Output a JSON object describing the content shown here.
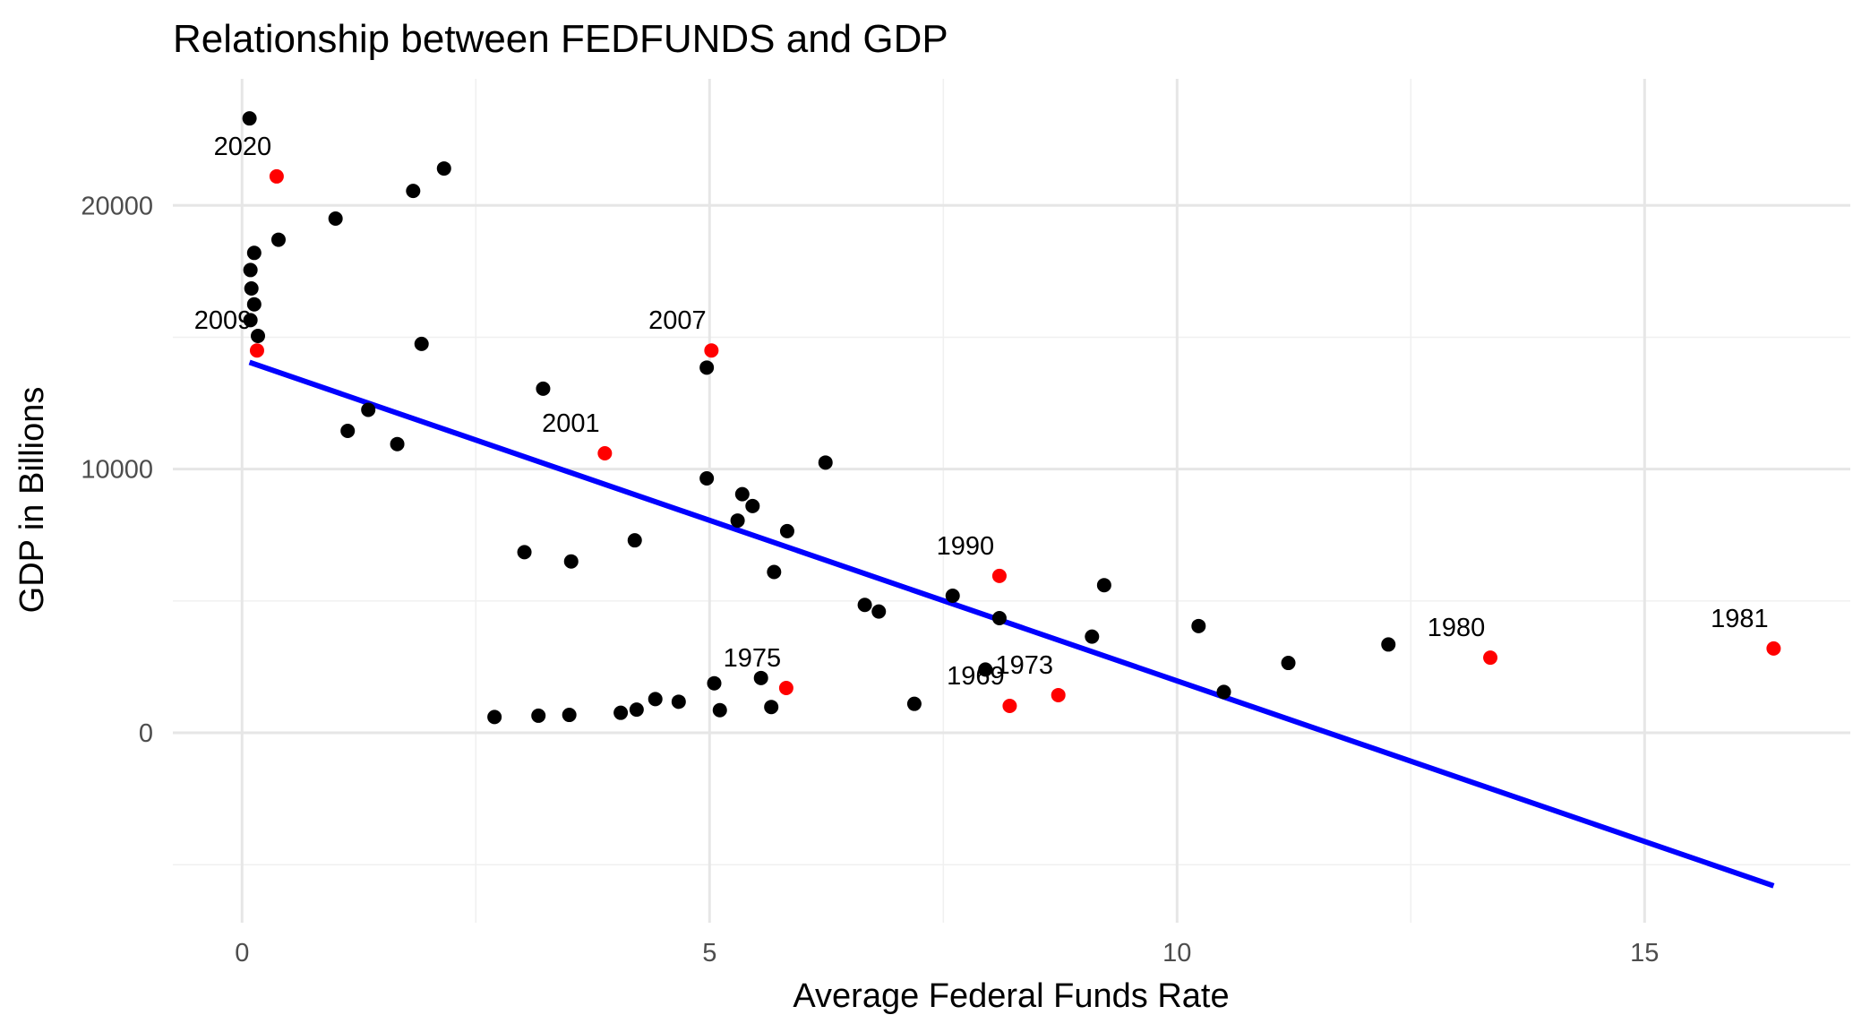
{
  "chart_data": {
    "type": "scatter",
    "title": "Relationship between FEDFUNDS and GDP",
    "xlabel": "Average Federal Funds Rate",
    "ylabel": "GDP in Billions",
    "xlim": [
      -0.74,
      17.2
    ],
    "ylim": [
      -7200,
      24800
    ],
    "x_ticks": [
      {
        "value": 0,
        "label": "0"
      },
      {
        "value": 5,
        "label": "5"
      },
      {
        "value": 10,
        "label": "10"
      },
      {
        "value": 15,
        "label": "15"
      }
    ],
    "y_ticks": [
      {
        "value": 0,
        "label": "0"
      },
      {
        "value": 10000,
        "label": "10000"
      },
      {
        "value": 20000,
        "label": "20000"
      }
    ],
    "x_minor": [
      2.5,
      7.5,
      12.5
    ],
    "y_minor": [
      -5000,
      5000,
      15000
    ],
    "grid": true,
    "colors": {
      "points": "#000000",
      "highlight": "#ff0000",
      "fit_line": "#0000ff"
    },
    "points": [
      [
        0.08,
        23300
      ],
      [
        0.09,
        17550
      ],
      [
        0.1,
        16850
      ],
      [
        0.13,
        16250
      ],
      [
        0.09,
        15650
      ],
      [
        0.13,
        18200
      ],
      [
        0.39,
        18700
      ],
      [
        0.17,
        15050
      ],
      [
        1.0,
        19500
      ],
      [
        1.83,
        20550
      ],
      [
        2.16,
        21400
      ],
      [
        1.92,
        14750
      ],
      [
        1.13,
        11450
      ],
      [
        1.35,
        12250
      ],
      [
        1.66,
        10950
      ],
      [
        3.22,
        13050
      ],
      [
        4.97,
        13850
      ],
      [
        4.97,
        9650
      ],
      [
        5.35,
        9050
      ],
      [
        5.46,
        8600
      ],
      [
        5.3,
        8050
      ],
      [
        5.83,
        7650
      ],
      [
        6.24,
        10250
      ],
      [
        4.2,
        7300
      ],
      [
        3.02,
        6850
      ],
      [
        3.52,
        6500
      ],
      [
        5.69,
        6100
      ],
      [
        6.66,
        4850
      ],
      [
        6.81,
        4600
      ],
      [
        7.6,
        5200
      ],
      [
        8.1,
        4350
      ],
      [
        7.95,
        2400
      ],
      [
        9.09,
        3650
      ],
      [
        9.22,
        5600
      ],
      [
        10.23,
        4050
      ],
      [
        10.5,
        1550
      ],
      [
        11.19,
        2650
      ],
      [
        12.26,
        3350
      ],
      [
        2.7,
        600
      ],
      [
        3.17,
        650
      ],
      [
        3.5,
        680
      ],
      [
        4.05,
        760
      ],
      [
        4.22,
        880
      ],
      [
        4.42,
        1280
      ],
      [
        4.67,
        1180
      ],
      [
        5.05,
        1880
      ],
      [
        5.11,
        860
      ],
      [
        5.55,
        2080
      ],
      [
        5.66,
        980
      ],
      [
        7.19,
        1100
      ]
    ],
    "highlighted": [
      {
        "year": "2020",
        "x": 0.37,
        "y": 21100
      },
      {
        "year": "2009",
        "x": 0.16,
        "y": 14500
      },
      {
        "year": "2007",
        "x": 5.02,
        "y": 14500
      },
      {
        "year": "2001",
        "x": 3.88,
        "y": 10600
      },
      {
        "year": "1990",
        "x": 8.1,
        "y": 5950
      },
      {
        "year": "1975",
        "x": 5.82,
        "y": 1700
      },
      {
        "year": "1969",
        "x": 8.21,
        "y": 1020
      },
      {
        "year": "1973",
        "x": 8.73,
        "y": 1430
      },
      {
        "year": "1980",
        "x": 13.35,
        "y": 2850
      },
      {
        "year": "1981",
        "x": 16.38,
        "y": 3200
      }
    ],
    "fit_line": {
      "x": [
        0.08,
        16.38
      ],
      "y": [
        14050,
        -5800
      ]
    }
  }
}
